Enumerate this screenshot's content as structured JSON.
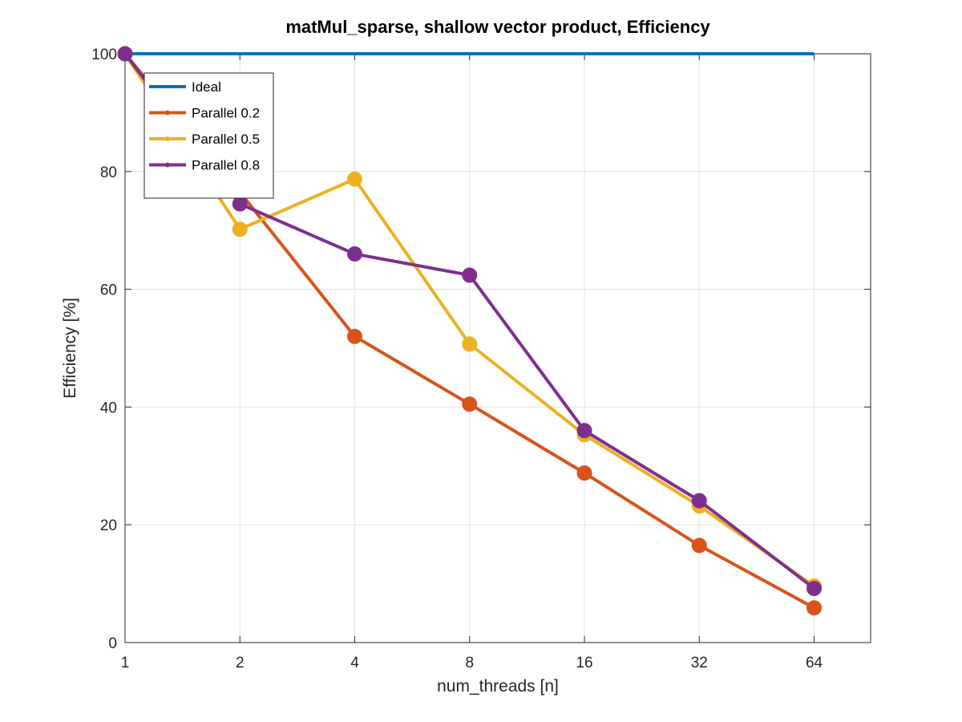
{
  "chart_data": {
    "type": "line",
    "title": "matMul_sparse, shallow vector product, Efficiency",
    "xlabel": "num_threads [n]",
    "ylabel": "Efficiency [%]",
    "x_scale": "log2",
    "x": [
      1,
      2,
      4,
      8,
      16,
      32,
      64
    ],
    "x_tick_labels": [
      "1",
      "2",
      "4",
      "8",
      "16",
      "32",
      "64"
    ],
    "y_ticks": [
      0,
      20,
      40,
      60,
      80,
      100
    ],
    "y_tick_labels": [
      "0",
      "20",
      "40",
      "60",
      "80",
      "100"
    ],
    "xlim": [
      1,
      90
    ],
    "ylim": [
      0,
      100
    ],
    "grid": true,
    "legend_position": "top-left",
    "series": [
      {
        "name": "Ideal",
        "color": "#0072BD",
        "markers": false,
        "values": [
          100,
          100,
          100,
          100,
          100,
          100,
          100
        ]
      },
      {
        "name": "Parallel 0.2",
        "color": "#D95319",
        "markers": true,
        "values": [
          100,
          76.5,
          52,
          40.5,
          28.8,
          16.5,
          5.9
        ]
      },
      {
        "name": "Parallel 0.5",
        "color": "#EDB120",
        "markers": true,
        "values": [
          100,
          70.2,
          78.7,
          50.7,
          35.3,
          23.2,
          9.6
        ]
      },
      {
        "name": "Parallel 0.8",
        "color": "#7E2F8E",
        "markers": true,
        "values": [
          100,
          74.5,
          66,
          62.4,
          36,
          24.1,
          9.2
        ]
      }
    ]
  }
}
